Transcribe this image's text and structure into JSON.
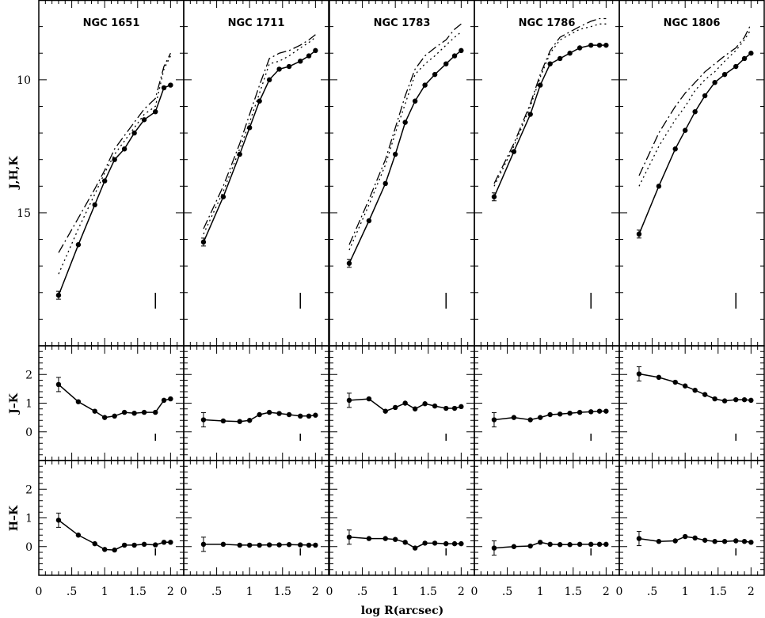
{
  "chart_data": {
    "type": "line",
    "xlabel": "log R(arcsec)",
    "xlim": [
      0,
      2.2
    ],
    "x_ticks": [
      "0",
      ".5",
      "1",
      "1.5",
      "2"
    ],
    "rows": [
      {
        "key": "mag",
        "ylabel": "J,H,K",
        "ylim": [
          7.0,
          20.0
        ],
        "inverted": true,
        "y_ticks": [
          "10",
          "15"
        ]
      },
      {
        "key": "jk",
        "ylabel": "J–K",
        "ylim": [
          -1.0,
          3.0
        ],
        "inverted": false,
        "y_ticks": [
          "0",
          "1",
          "2"
        ]
      },
      {
        "key": "hk",
        "ylabel": "H–K",
        "ylim": [
          -1.0,
          3.0
        ],
        "inverted": false,
        "y_ticks": [
          "0",
          "1",
          "2"
        ]
      }
    ],
    "panels": [
      {
        "title": "NGC 1651",
        "marker_x": 1.77,
        "x": [
          0.3,
          0.6,
          0.85,
          1.0,
          1.15,
          1.3,
          1.45,
          1.6,
          1.77,
          1.9,
          2.0
        ],
        "K": [
          18.1,
          16.2,
          14.7,
          13.8,
          13.0,
          12.6,
          12.0,
          11.5,
          11.2,
          10.3,
          10.2
        ],
        "H": [
          17.3,
          15.6,
          14.3,
          13.5,
          12.8,
          12.3,
          11.8,
          11.3,
          11.0,
          9.6,
          9.1
        ],
        "J": [
          16.5,
          15.2,
          14.1,
          13.4,
          12.6,
          12.1,
          11.6,
          11.1,
          10.7,
          9.5,
          9.0
        ],
        "jk": [
          1.65,
          1.05,
          0.72,
          0.5,
          0.55,
          0.68,
          0.65,
          0.68,
          0.68,
          1.1,
          1.15
        ],
        "hk": [
          0.92,
          0.4,
          0.1,
          -0.1,
          -0.12,
          0.05,
          0.05,
          0.08,
          0.06,
          0.15,
          0.15
        ]
      },
      {
        "title": "NGC 1711",
        "marker_x": 1.77,
        "x": [
          0.3,
          0.6,
          0.85,
          1.0,
          1.15,
          1.3,
          1.45,
          1.6,
          1.77,
          1.9,
          2.0
        ],
        "K": [
          16.1,
          14.4,
          12.8,
          11.8,
          10.8,
          10.0,
          9.6,
          9.5,
          9.3,
          9.1,
          8.9
        ],
        "H": [
          15.8,
          14.2,
          12.6,
          11.6,
          10.5,
          9.4,
          9.3,
          9.1,
          8.8,
          8.6,
          8.4
        ],
        "J": [
          15.6,
          14.0,
          12.4,
          11.3,
          10.2,
          9.2,
          9.0,
          8.9,
          8.7,
          8.5,
          8.3
        ],
        "jk": [
          0.42,
          0.38,
          0.36,
          0.4,
          0.6,
          0.68,
          0.64,
          0.6,
          0.55,
          0.55,
          0.58
        ],
        "hk": [
          0.08,
          0.08,
          0.05,
          0.05,
          0.05,
          0.06,
          0.06,
          0.07,
          0.06,
          0.05,
          0.05
        ]
      },
      {
        "title": "NGC 1783",
        "marker_x": 1.77,
        "x": [
          0.3,
          0.6,
          0.85,
          1.0,
          1.15,
          1.3,
          1.45,
          1.6,
          1.77,
          1.9,
          2.0
        ],
        "K": [
          16.9,
          15.3,
          13.9,
          12.8,
          11.6,
          10.8,
          10.2,
          9.8,
          9.4,
          9.1,
          8.9
        ],
        "H": [
          16.4,
          14.7,
          13.2,
          12.0,
          10.9,
          9.8,
          9.4,
          9.1,
          8.7,
          8.4,
          8.2
        ],
        "J": [
          16.2,
          14.5,
          13.0,
          11.8,
          10.6,
          9.6,
          9.1,
          8.8,
          8.5,
          8.1,
          7.9
        ],
        "jk": [
          1.1,
          1.15,
          0.72,
          0.85,
          1.0,
          0.8,
          0.98,
          0.9,
          0.82,
          0.82,
          0.88
        ],
        "hk": [
          0.33,
          0.28,
          0.28,
          0.25,
          0.15,
          -0.05,
          0.12,
          0.12,
          0.1,
          0.1,
          0.1
        ]
      },
      {
        "title": "NGC 1786",
        "marker_x": 1.77,
        "x": [
          0.3,
          0.6,
          0.85,
          1.0,
          1.15,
          1.3,
          1.45,
          1.6,
          1.77,
          1.9,
          2.0
        ],
        "K": [
          14.4,
          12.7,
          11.3,
          10.2,
          9.4,
          9.2,
          9.0,
          8.8,
          8.7,
          8.7,
          8.7
        ],
        "H": [
          14.0,
          12.5,
          11.0,
          9.9,
          9.0,
          8.5,
          8.3,
          8.1,
          8.0,
          7.9,
          7.9
        ],
        "J": [
          13.9,
          12.4,
          10.9,
          9.8,
          8.9,
          8.4,
          8.2,
          8.0,
          7.8,
          7.7,
          7.7
        ],
        "jk": [
          0.42,
          0.5,
          0.42,
          0.5,
          0.6,
          0.62,
          0.65,
          0.68,
          0.7,
          0.72,
          0.72
        ],
        "hk": [
          -0.05,
          0.0,
          0.02,
          0.15,
          0.08,
          0.07,
          0.07,
          0.08,
          0.08,
          0.08,
          0.08
        ]
      },
      {
        "title": "NGC 1806",
        "marker_x": 1.77,
        "x": [
          0.3,
          0.6,
          0.85,
          1.0,
          1.15,
          1.3,
          1.45,
          1.6,
          1.77,
          1.9,
          2.0
        ],
        "K": [
          15.8,
          14.0,
          12.6,
          11.9,
          11.2,
          10.6,
          10.1,
          9.8,
          9.5,
          9.2,
          9.0
        ],
        "H": [
          14.0,
          12.5,
          11.5,
          11.0,
          10.4,
          10.0,
          9.7,
          9.3,
          8.9,
          8.5,
          8.1
        ],
        "J": [
          13.6,
          12.0,
          11.0,
          10.5,
          10.1,
          9.7,
          9.4,
          9.1,
          8.8,
          8.4,
          7.9
        ],
        "jk": [
          2.02,
          1.9,
          1.73,
          1.6,
          1.45,
          1.3,
          1.15,
          1.08,
          1.12,
          1.12,
          1.1
        ],
        "hk": [
          0.28,
          0.18,
          0.2,
          0.35,
          0.3,
          0.22,
          0.18,
          0.18,
          0.2,
          0.18,
          0.15
        ]
      }
    ]
  }
}
